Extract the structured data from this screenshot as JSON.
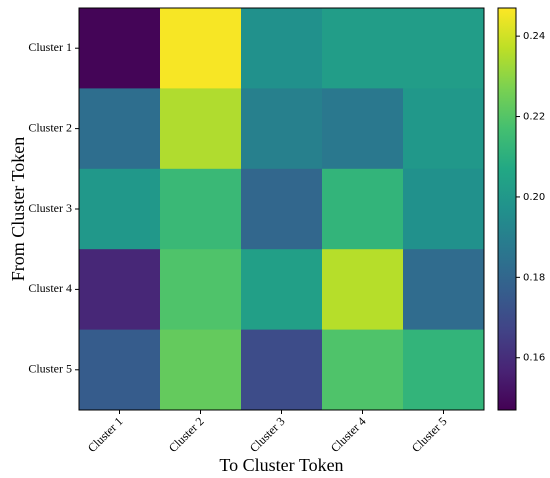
{
  "chart_data": {
    "type": "heatmap",
    "title": "",
    "xlabel": "To Cluster Token",
    "ylabel": "From Cluster Token",
    "x_categories": [
      "Cluster 1",
      "Cluster 2",
      "Cluster 3",
      "Cluster 4",
      "Cluster 5"
    ],
    "y_categories": [
      "Cluster 1",
      "Cluster 2",
      "Cluster 3",
      "Cluster 4",
      "Cluster 5"
    ],
    "values": [
      [
        0.148,
        0.246,
        0.197,
        0.202,
        0.202
      ],
      [
        0.183,
        0.235,
        0.19,
        0.187,
        0.2
      ],
      [
        0.2,
        0.214,
        0.18,
        0.212,
        0.197
      ],
      [
        0.158,
        0.219,
        0.203,
        0.236,
        0.182
      ],
      [
        0.176,
        0.223,
        0.17,
        0.219,
        0.212
      ]
    ],
    "colormap": "viridis",
    "color_range": [
      0.147,
      0.247
    ],
    "colorbar_ticks": [
      "0.16",
      "0.18",
      "0.20",
      "0.22",
      "0.24"
    ],
    "grid": false
  }
}
